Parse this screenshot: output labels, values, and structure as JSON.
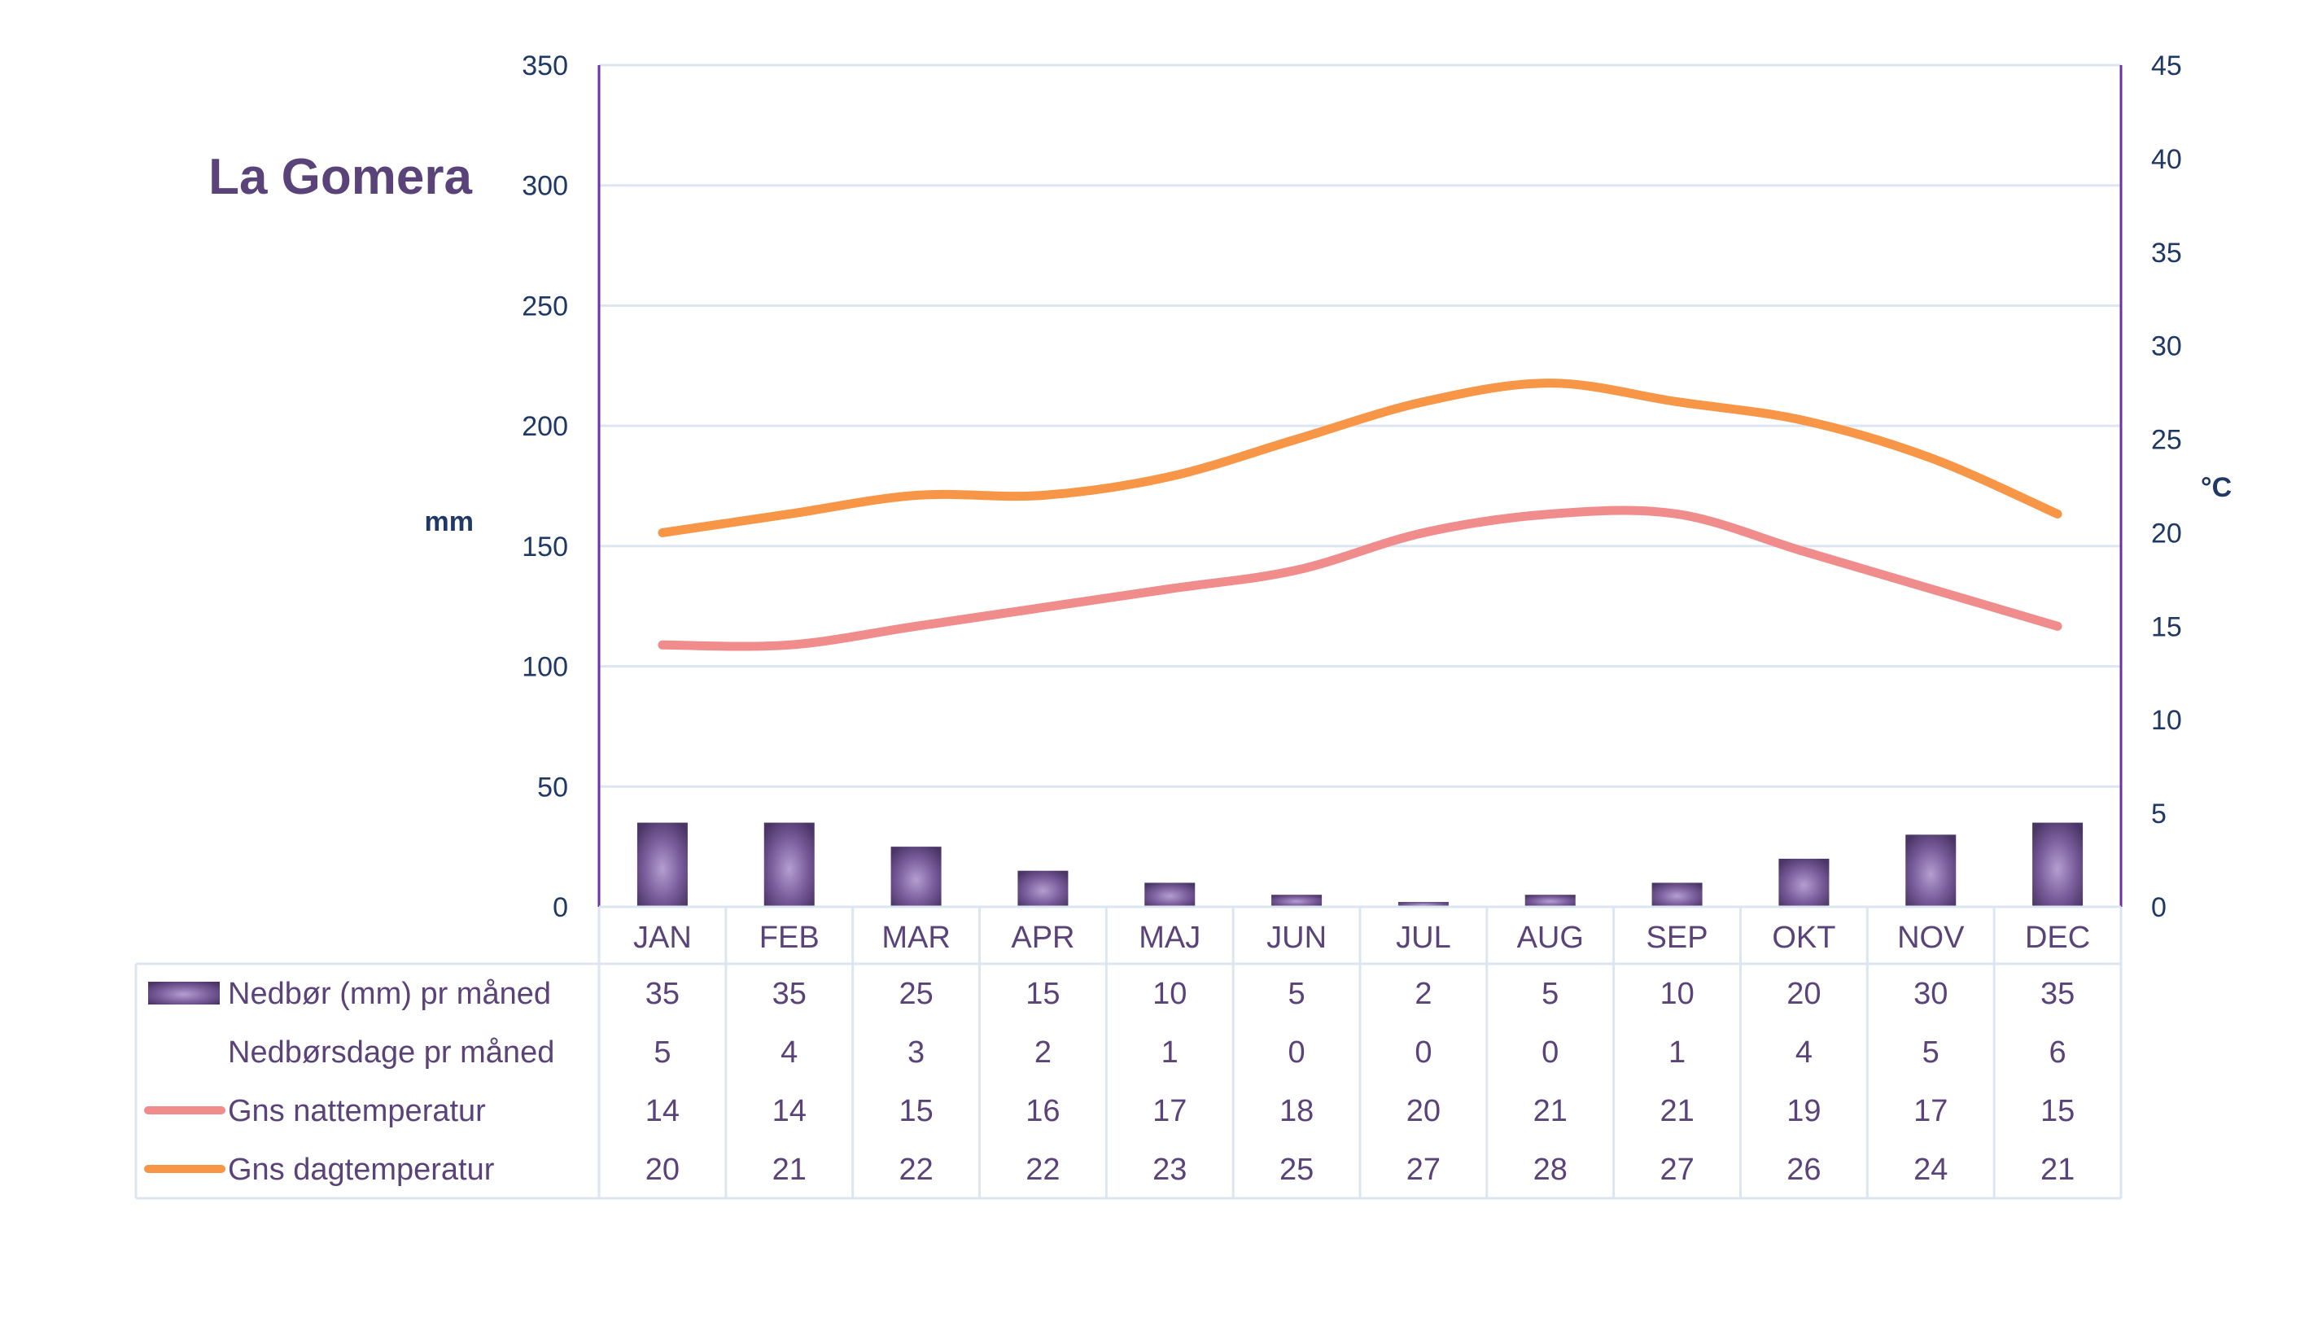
{
  "chart_data": {
    "type": "bar+line",
    "title": "La Gomera",
    "categories": [
      "JAN",
      "FEB",
      "MAR",
      "APR",
      "MAJ",
      "JUN",
      "JUL",
      "AUG",
      "SEP",
      "OKT",
      "NOV",
      "DEC"
    ],
    "y_left": {
      "label": "mm",
      "min": 0,
      "max": 350,
      "ticks": [
        0,
        50,
        100,
        150,
        200,
        250,
        300,
        350
      ]
    },
    "y_right": {
      "label": "°C",
      "min": 0,
      "max": 45,
      "ticks": [
        0,
        5,
        10,
        15,
        20,
        25,
        30,
        35,
        40,
        45
      ]
    },
    "grid": true,
    "legend": "data-table",
    "series": [
      {
        "name": "Nedbør (mm) pr måned",
        "type": "bar",
        "axis": "left",
        "color": "#5a4378",
        "values": [
          35,
          35,
          25,
          15,
          10,
          5,
          2,
          5,
          10,
          20,
          30,
          35
        ]
      },
      {
        "name": "Nedbørsdage pr måned",
        "type": "table-only",
        "values": [
          5,
          4,
          3,
          2,
          1,
          0,
          0,
          0,
          1,
          4,
          5,
          6
        ]
      },
      {
        "name": "Gns nattemperatur",
        "type": "line",
        "axis": "right",
        "color": "#f08c8c",
        "values": [
          14,
          14,
          15,
          16,
          17,
          18,
          20,
          21,
          21,
          19,
          17,
          15
        ]
      },
      {
        "name": "Gns dagtemperatur",
        "type": "line",
        "axis": "right",
        "color": "#f79646",
        "values": [
          20,
          21,
          22,
          22,
          23,
          25,
          27,
          28,
          27,
          26,
          24,
          21
        ]
      }
    ],
    "colors": {
      "axis": "#7030a0",
      "grid": "#dce6f0",
      "table_border": "#dce6f0",
      "tick_text": "#1f3864",
      "label_text": "#5a4378",
      "title": "#5a4378"
    }
  }
}
